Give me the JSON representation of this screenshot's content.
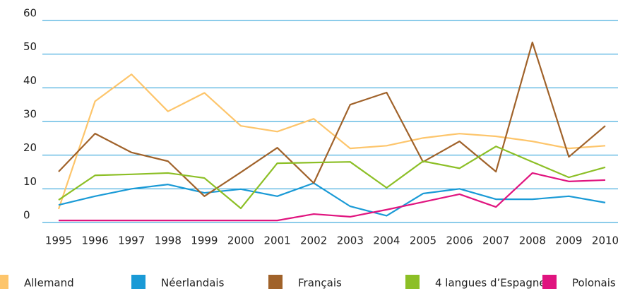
{
  "chart_data": {
    "type": "line",
    "categories": [
      "1995",
      "1996",
      "1997",
      "1998",
      "1999",
      "2000",
      "2001",
      "2002",
      "2003",
      "2004",
      "2005",
      "2006",
      "2007",
      "2008",
      "2009",
      "2010"
    ],
    "series": [
      {
        "name": "Allemand",
        "color": "#fdc56b",
        "values": [
          4,
          36,
          44,
          33,
          38.5,
          28.7,
          27,
          30.8,
          22,
          22.8,
          25.1,
          26.4,
          25.6,
          24.1,
          22,
          22.8
        ]
      },
      {
        "name": "Néerlandais",
        "color": "#1a9ad6",
        "values": [
          5.2,
          7.8,
          10,
          11.3,
          8.8,
          9.9,
          7.8,
          11.7,
          4.8,
          2,
          8.6,
          10,
          6.9,
          6.9,
          7.8,
          5.9
        ]
      },
      {
        "name": "Français",
        "color": "#a0622a",
        "values": [
          15.1,
          26.4,
          20.8,
          18.2,
          7.8,
          14.9,
          22.2,
          11.7,
          35,
          38.6,
          18,
          24.1,
          15.1,
          53.5,
          19.5,
          28.7
        ]
      },
      {
        "name": "4 langues d’Espagne",
        "color": "#8cbf26",
        "values": [
          6.7,
          14,
          14.3,
          14.7,
          13.2,
          4.2,
          17.6,
          17.8,
          18,
          10.3,
          18.2,
          16.1,
          22.6,
          18,
          13.4,
          16.4
        ]
      },
      {
        "name": "Polonais",
        "color": "#e0147f",
        "values": [
          0.6,
          0.6,
          0.6,
          0.6,
          0.6,
          0.6,
          0.6,
          2.5,
          1.7,
          3.8,
          6.1,
          8.4,
          4.6,
          14.7,
          12.2,
          12.6
        ]
      }
    ],
    "ylim": [
      0,
      60
    ],
    "yticks": [
      0,
      10,
      20,
      30,
      40,
      50,
      60
    ],
    "grid": true,
    "grid_color": "#1a9ad6",
    "legend": "bottom"
  }
}
